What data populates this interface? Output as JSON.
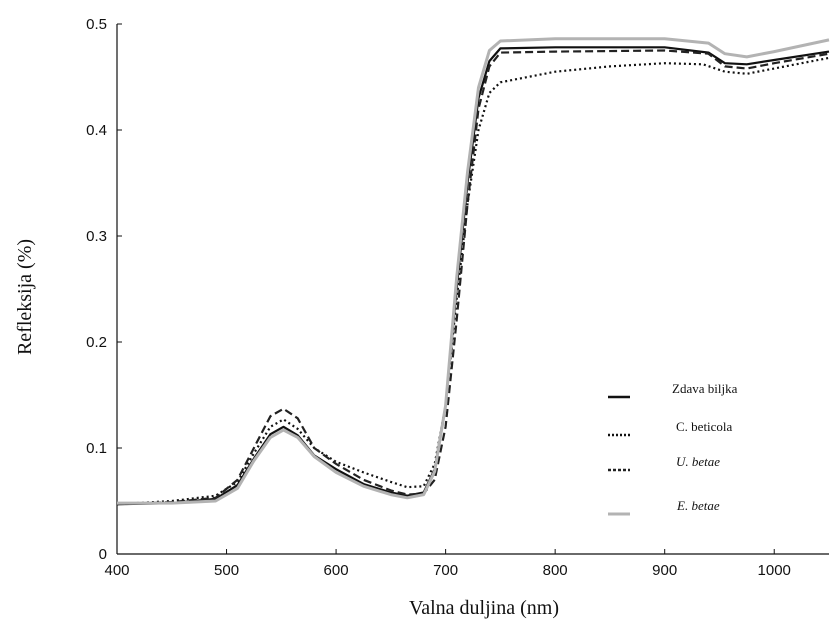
{
  "chart_data": {
    "type": "line",
    "title": "",
    "xlabel": "Valna duljina (nm)",
    "ylabel": "Refleksija (%)",
    "xlim": [
      400,
      1050
    ],
    "ylim": [
      0,
      0.5
    ],
    "x_ticks": [
      "400",
      "500",
      "600",
      "700",
      "800",
      "900",
      "1000"
    ],
    "y_ticks": [
      "0",
      "0.1",
      "0.2",
      "0.3",
      "0.4",
      "0.5"
    ],
    "grid": false,
    "legend_position": "lower-right",
    "series": [
      {
        "name": "Zdava biljka",
        "style": "solid",
        "color": "#111111",
        "points": [
          [
            400,
            0.047
          ],
          [
            450,
            0.048
          ],
          [
            490,
            0.052
          ],
          [
            510,
            0.065
          ],
          [
            525,
            0.09
          ],
          [
            540,
            0.113
          ],
          [
            552,
            0.12
          ],
          [
            565,
            0.112
          ],
          [
            580,
            0.093
          ],
          [
            600,
            0.08
          ],
          [
            625,
            0.066
          ],
          [
            650,
            0.058
          ],
          [
            665,
            0.055
          ],
          [
            680,
            0.058
          ],
          [
            690,
            0.08
          ],
          [
            700,
            0.14
          ],
          [
            710,
            0.25
          ],
          [
            720,
            0.35
          ],
          [
            730,
            0.43
          ],
          [
            740,
            0.465
          ],
          [
            750,
            0.477
          ],
          [
            800,
            0.478
          ],
          [
            900,
            0.478
          ],
          [
            940,
            0.473
          ],
          [
            955,
            0.463
          ],
          [
            975,
            0.462
          ],
          [
            1000,
            0.466
          ],
          [
            1050,
            0.474
          ]
        ]
      },
      {
        "name": "C. beticola",
        "style": "dotted",
        "color": "#111111",
        "points": [
          [
            400,
            0.047
          ],
          [
            450,
            0.05
          ],
          [
            490,
            0.055
          ],
          [
            510,
            0.068
          ],
          [
            525,
            0.095
          ],
          [
            540,
            0.12
          ],
          [
            552,
            0.127
          ],
          [
            565,
            0.118
          ],
          [
            580,
            0.1
          ],
          [
            600,
            0.087
          ],
          [
            625,
            0.077
          ],
          [
            650,
            0.068
          ],
          [
            665,
            0.063
          ],
          [
            680,
            0.064
          ],
          [
            690,
            0.085
          ],
          [
            700,
            0.14
          ],
          [
            710,
            0.24
          ],
          [
            720,
            0.33
          ],
          [
            730,
            0.4
          ],
          [
            740,
            0.435
          ],
          [
            750,
            0.445
          ],
          [
            800,
            0.455
          ],
          [
            850,
            0.46
          ],
          [
            900,
            0.463
          ],
          [
            935,
            0.462
          ],
          [
            955,
            0.455
          ],
          [
            975,
            0.453
          ],
          [
            1000,
            0.458
          ],
          [
            1050,
            0.468
          ]
        ]
      },
      {
        "name": "U. betae",
        "style": "dashed",
        "color": "#222222",
        "points": [
          [
            400,
            0.047
          ],
          [
            450,
            0.049
          ],
          [
            490,
            0.053
          ],
          [
            510,
            0.07
          ],
          [
            525,
            0.1
          ],
          [
            540,
            0.13
          ],
          [
            552,
            0.137
          ],
          [
            565,
            0.128
          ],
          [
            580,
            0.1
          ],
          [
            600,
            0.085
          ],
          [
            625,
            0.07
          ],
          [
            650,
            0.06
          ],
          [
            665,
            0.056
          ],
          [
            680,
            0.057
          ],
          [
            690,
            0.07
          ],
          [
            700,
            0.12
          ],
          [
            710,
            0.22
          ],
          [
            720,
            0.33
          ],
          [
            730,
            0.42
          ],
          [
            740,
            0.46
          ],
          [
            750,
            0.473
          ],
          [
            800,
            0.474
          ],
          [
            900,
            0.475
          ],
          [
            940,
            0.472
          ],
          [
            955,
            0.46
          ],
          [
            975,
            0.458
          ],
          [
            1000,
            0.463
          ],
          [
            1050,
            0.472
          ]
        ]
      },
      {
        "name": "E. betae",
        "style": "solid",
        "color": "#b3b3b3",
        "points": [
          [
            400,
            0.048
          ],
          [
            450,
            0.048
          ],
          [
            490,
            0.05
          ],
          [
            510,
            0.062
          ],
          [
            525,
            0.088
          ],
          [
            540,
            0.11
          ],
          [
            552,
            0.117
          ],
          [
            565,
            0.11
          ],
          [
            580,
            0.092
          ],
          [
            600,
            0.077
          ],
          [
            625,
            0.064
          ],
          [
            650,
            0.056
          ],
          [
            665,
            0.053
          ],
          [
            680,
            0.056
          ],
          [
            690,
            0.078
          ],
          [
            700,
            0.14
          ],
          [
            710,
            0.26
          ],
          [
            720,
            0.36
          ],
          [
            730,
            0.44
          ],
          [
            740,
            0.475
          ],
          [
            750,
            0.484
          ],
          [
            800,
            0.486
          ],
          [
            900,
            0.486
          ],
          [
            940,
            0.482
          ],
          [
            955,
            0.472
          ],
          [
            975,
            0.469
          ],
          [
            1000,
            0.474
          ],
          [
            1050,
            0.485
          ]
        ]
      }
    ]
  }
}
